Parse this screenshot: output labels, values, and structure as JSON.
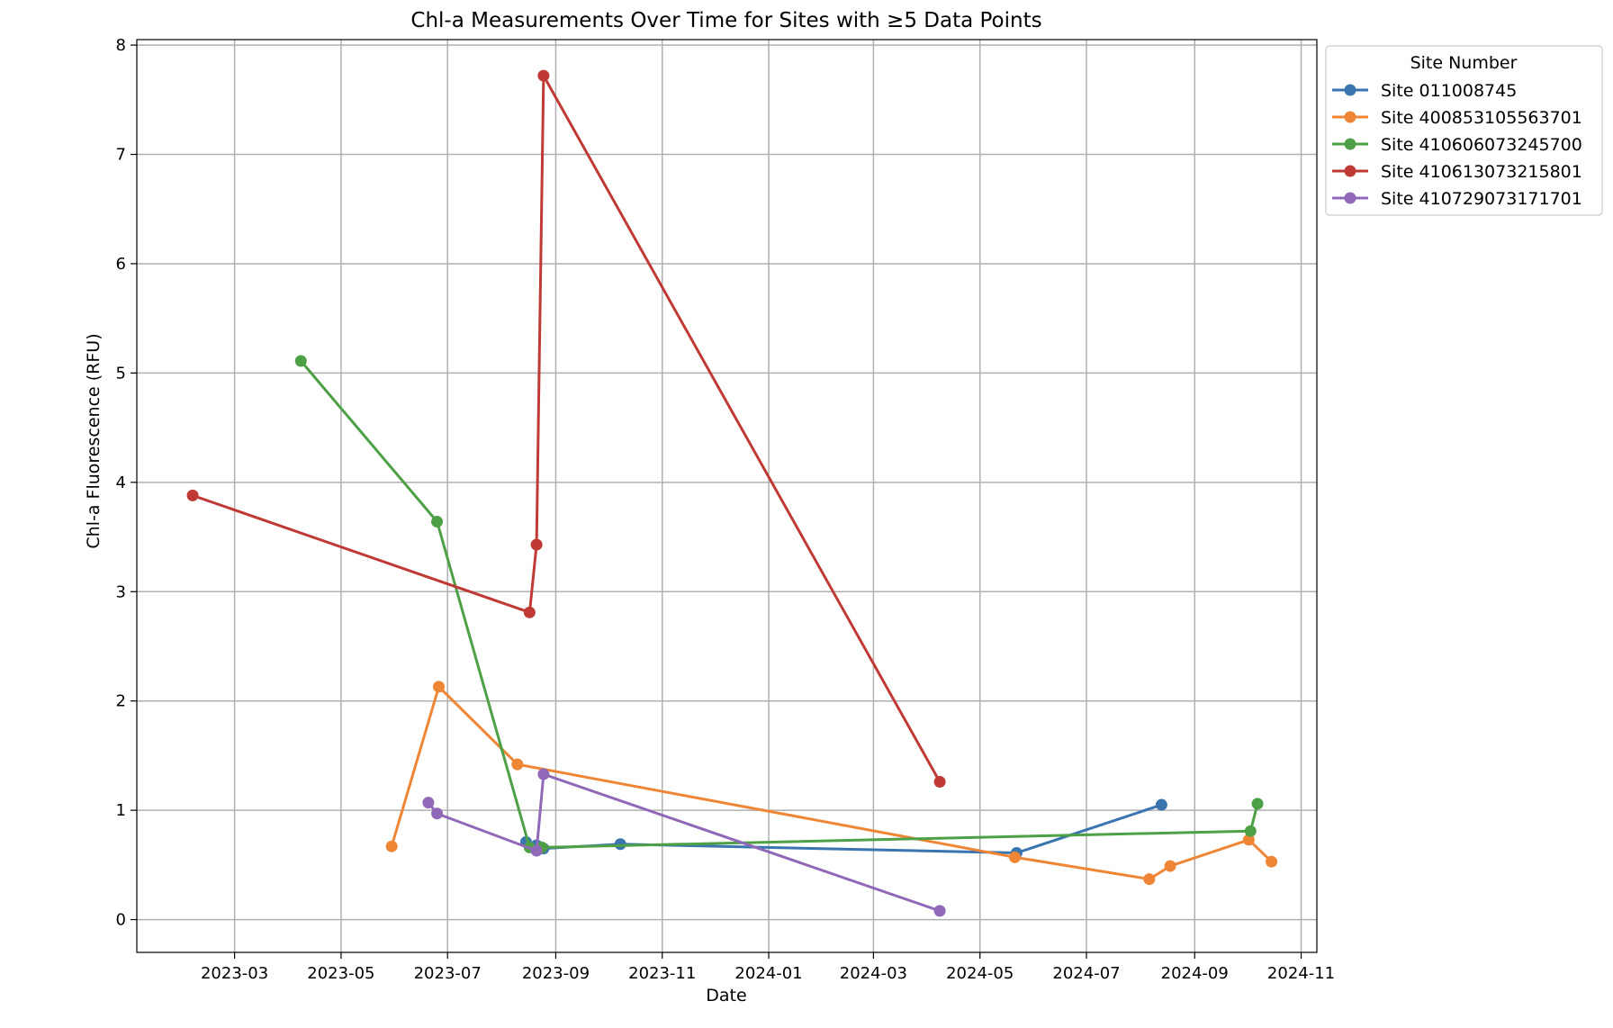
{
  "chart_data": {
    "type": "line",
    "title": "Chl-a Measurements Over Time for Sites with ≥5 Data Points",
    "xlabel": "Date",
    "ylabel": "Chl-a Fluorescence (RFU)",
    "xlim": [
      "2023-01-04",
      "2024-11-10"
    ],
    "ylim": [
      -0.3,
      8.05
    ],
    "x_ticks": [
      "2023-03-01",
      "2023-05-01",
      "2023-07-01",
      "2023-09-01",
      "2023-11-01",
      "2024-01-01",
      "2024-03-01",
      "2024-05-01",
      "2024-07-01",
      "2024-09-01",
      "2024-11-01"
    ],
    "x_tick_labels": [
      "2023-03",
      "2023-05",
      "2023-07",
      "2023-09",
      "2023-11",
      "2024-01",
      "2024-03",
      "2024-05",
      "2024-07",
      "2024-09",
      "2024-11"
    ],
    "y_ticks": [
      0,
      1,
      2,
      3,
      4,
      5,
      6,
      7,
      8
    ],
    "y_tick_labels": [
      "0",
      "1",
      "2",
      "3",
      "4",
      "5",
      "6",
      "7",
      "8"
    ],
    "grid": true,
    "legend": {
      "title": "Site Number",
      "placement": "outside-upper-right"
    },
    "series": [
      {
        "name": "Site 011008745",
        "color": "#3a75b0",
        "points": [
          {
            "x": "2023-08-15",
            "y": 0.71
          },
          {
            "x": "2023-08-21",
            "y": 0.68
          },
          {
            "x": "2023-08-25",
            "y": 0.65
          },
          {
            "x": "2023-10-08",
            "y": 0.69
          },
          {
            "x": "2024-05-22",
            "y": 0.61
          },
          {
            "x": "2024-08-13",
            "y": 1.05
          }
        ]
      },
      {
        "name": "Site 400853105563701",
        "color": "#ef8636",
        "points": [
          {
            "x": "2023-05-30",
            "y": 0.67
          },
          {
            "x": "2023-06-26",
            "y": 2.13
          },
          {
            "x": "2023-08-10",
            "y": 1.42
          },
          {
            "x": "2024-05-21",
            "y": 0.57
          },
          {
            "x": "2024-08-06",
            "y": 0.37
          },
          {
            "x": "2024-08-18",
            "y": 0.49
          },
          {
            "x": "2024-10-02",
            "y": 0.73
          },
          {
            "x": "2024-10-15",
            "y": 0.53
          }
        ]
      },
      {
        "name": "Site 410606073245700",
        "color": "#4da045",
        "points": [
          {
            "x": "2023-04-08",
            "y": 5.11
          },
          {
            "x": "2023-06-25",
            "y": 3.64
          },
          {
            "x": "2023-08-17",
            "y": 0.66
          },
          {
            "x": "2023-08-24",
            "y": 0.66
          },
          {
            "x": "2024-10-03",
            "y": 0.81
          },
          {
            "x": "2024-10-07",
            "y": 1.06
          }
        ]
      },
      {
        "name": "Site 410613073215801",
        "color": "#c03a35",
        "points": [
          {
            "x": "2023-02-05",
            "y": 3.88
          },
          {
            "x": "2023-08-17",
            "y": 2.81
          },
          {
            "x": "2023-08-21",
            "y": 3.43
          },
          {
            "x": "2023-08-25",
            "y": 7.72
          },
          {
            "x": "2024-04-08",
            "y": 1.26
          }
        ]
      },
      {
        "name": "Site 410729073171701",
        "color": "#9068b8",
        "points": [
          {
            "x": "2023-06-20",
            "y": 1.07
          },
          {
            "x": "2023-06-25",
            "y": 0.97
          },
          {
            "x": "2023-08-21",
            "y": 0.63
          },
          {
            "x": "2023-08-25",
            "y": 1.33
          },
          {
            "x": "2024-04-08",
            "y": 0.08
          }
        ]
      }
    ]
  }
}
